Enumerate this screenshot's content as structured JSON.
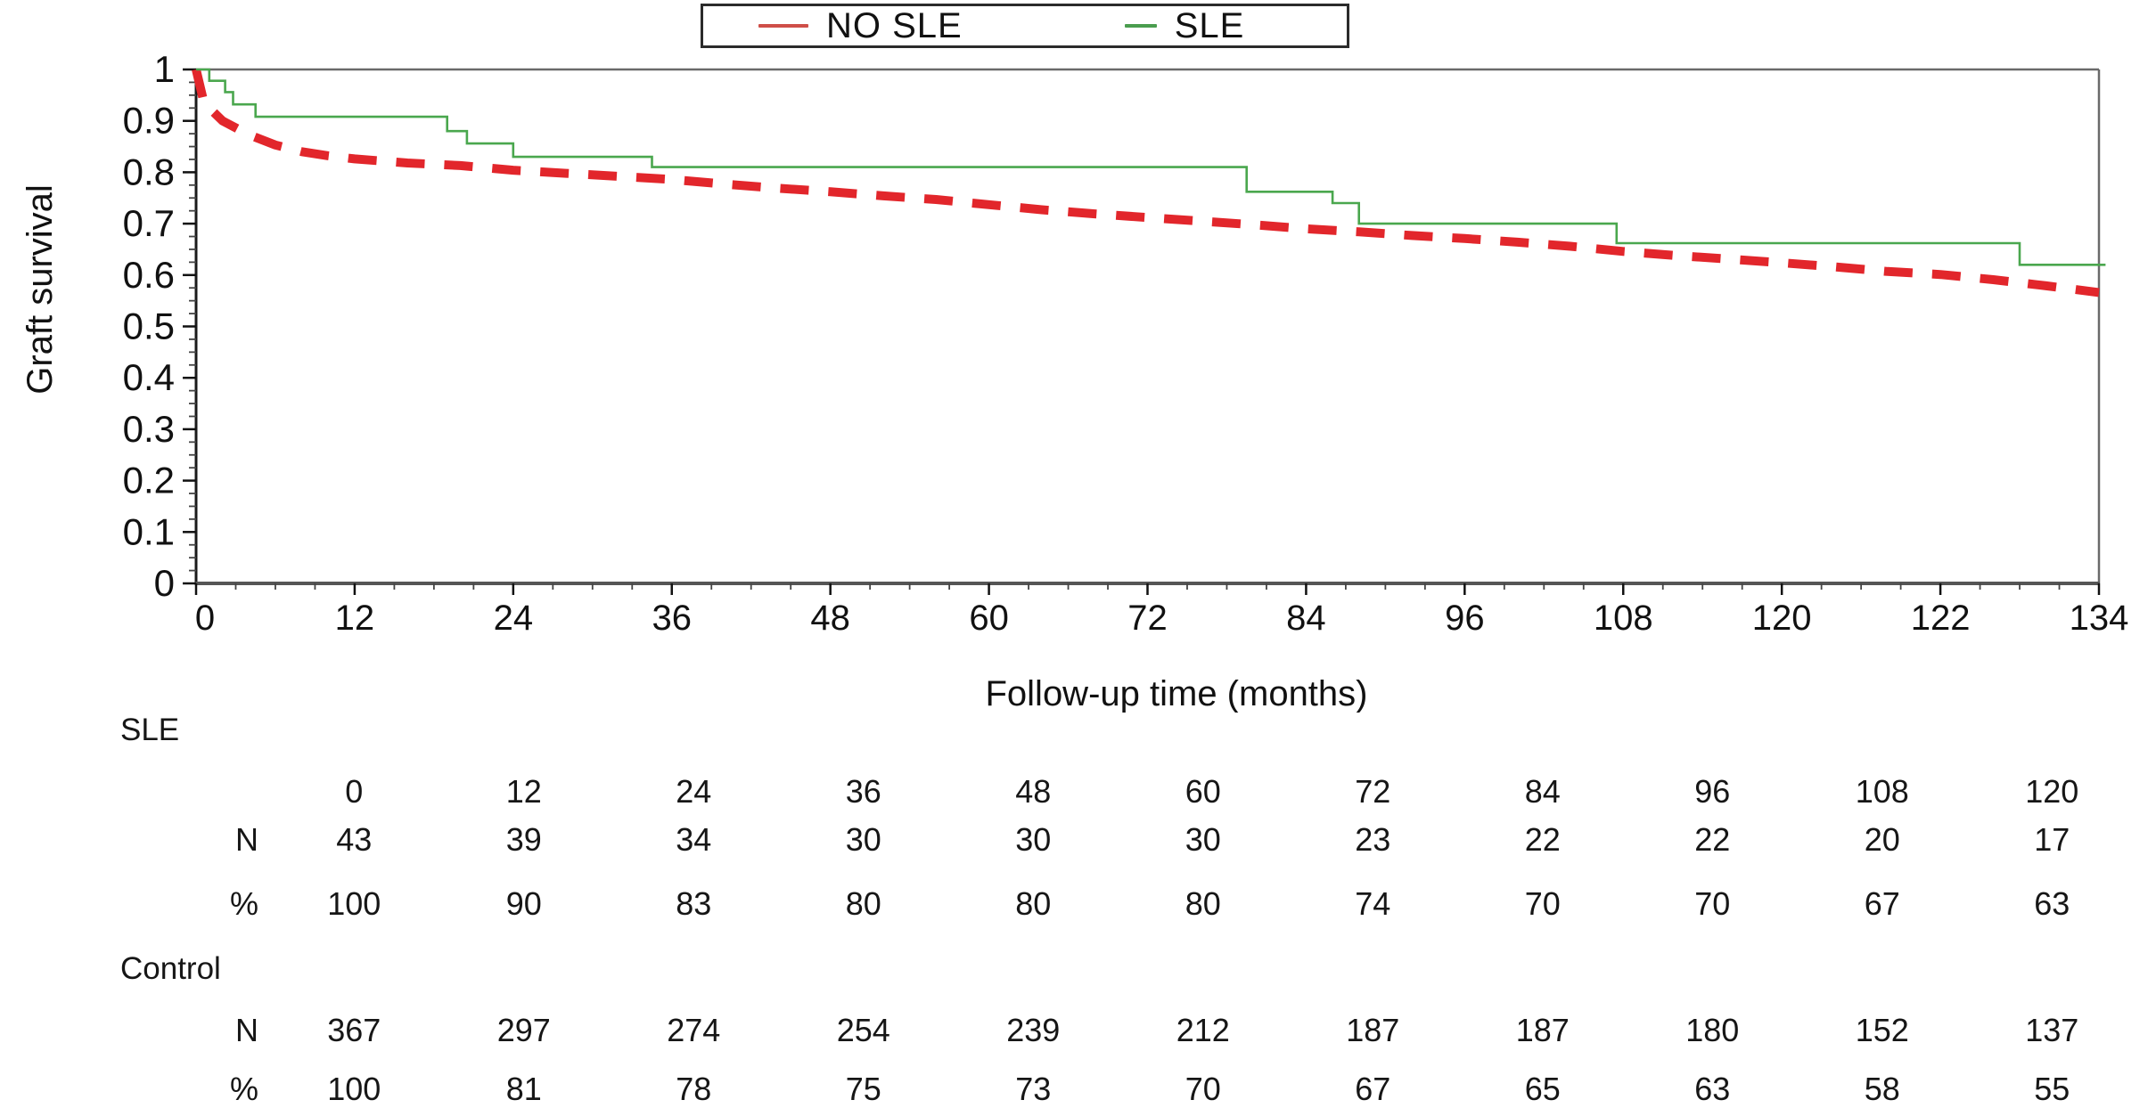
{
  "legend": {
    "entries": [
      {
        "label": "NO SLE",
        "color": "#cf4f48",
        "style": "solid-thin"
      },
      {
        "label": "SLE",
        "color": "#4a9d4f",
        "style": "solid-thin"
      }
    ]
  },
  "chart_data": {
    "type": "line",
    "title": "",
    "xlabel": "Follow-up time (months)",
    "ylabel": "Graft survival",
    "ylim": [
      0,
      1
    ],
    "grid": false,
    "legend_position": "top-center",
    "ytick_labels": [
      "1",
      "0.9",
      "0.8",
      "0.7",
      "0.6",
      "0.5",
      "0.4",
      "0.3",
      "0.2",
      "0.1",
      "0"
    ],
    "ytick_values": [
      1,
      0.9,
      0.8,
      0.7,
      0.6,
      0.5,
      0.4,
      0.3,
      0.2,
      0.1,
      0
    ],
    "xtick_labels": [
      "0",
      "12",
      "24",
      "36",
      "48",
      "60",
      "72",
      "84",
      "96",
      "108",
      "120",
      "122",
      "134"
    ],
    "x_axis_months_per_tick": 12,
    "series": [
      {
        "name": "NO SLE",
        "line_style": "dashed-thick",
        "color": "#e2262b",
        "points": [
          [
            0,
            1.0
          ],
          [
            0.6,
            0.935
          ],
          [
            2,
            0.9
          ],
          [
            4,
            0.873
          ],
          [
            6,
            0.853
          ],
          [
            8,
            0.84
          ],
          [
            10,
            0.832
          ],
          [
            12,
            0.826
          ],
          [
            16,
            0.818
          ],
          [
            20,
            0.813
          ],
          [
            24,
            0.804
          ],
          [
            28,
            0.798
          ],
          [
            32,
            0.792
          ],
          [
            36,
            0.786
          ],
          [
            40,
            0.777
          ],
          [
            44,
            0.769
          ],
          [
            48,
            0.762
          ],
          [
            52,
            0.754
          ],
          [
            56,
            0.747
          ],
          [
            60,
            0.737
          ],
          [
            64,
            0.727
          ],
          [
            68,
            0.719
          ],
          [
            72,
            0.712
          ],
          [
            76,
            0.705
          ],
          [
            80,
            0.698
          ],
          [
            84,
            0.69
          ],
          [
            88,
            0.684
          ],
          [
            92,
            0.677
          ],
          [
            96,
            0.671
          ],
          [
            100,
            0.664
          ],
          [
            104,
            0.656
          ],
          [
            108,
            0.646
          ],
          [
            112,
            0.638
          ],
          [
            116,
            0.631
          ],
          [
            120,
            0.624
          ],
          [
            124,
            0.616
          ],
          [
            128,
            0.607
          ],
          [
            132,
            0.601
          ],
          [
            136,
            0.591
          ],
          [
            140,
            0.579
          ],
          [
            144,
            0.566
          ]
        ]
      },
      {
        "name": "SLE",
        "line_style": "step-solid",
        "color": "#4aa74e",
        "points": [
          [
            0,
            1.0
          ],
          [
            1,
            0.978
          ],
          [
            2.2,
            0.956
          ],
          [
            2.8,
            0.932
          ],
          [
            4.5,
            0.908
          ],
          [
            19,
            0.88
          ],
          [
            20.5,
            0.856
          ],
          [
            24,
            0.83
          ],
          [
            34.5,
            0.81
          ],
          [
            79.5,
            0.762
          ],
          [
            86,
            0.74
          ],
          [
            88,
            0.7
          ],
          [
            107.5,
            0.662
          ],
          [
            138,
            0.62
          ],
          [
            144.5,
            0.62
          ]
        ]
      }
    ]
  },
  "risk_table": {
    "times": [
      "0",
      "12",
      "24",
      "36",
      "48",
      "60",
      "72",
      "84",
      "96",
      "108",
      "120"
    ],
    "n_label": "N",
    "pct_label": "%",
    "groups": [
      {
        "label": "SLE",
        "n": [
          "43",
          "39",
          "34",
          "30",
          "30",
          "30",
          "23",
          "22",
          "22",
          "20",
          "17"
        ],
        "pct": [
          "100",
          "90",
          "83",
          "80",
          "80",
          "80",
          "74",
          "70",
          "70",
          "67",
          "63"
        ]
      },
      {
        "label": "Control",
        "n": [
          "367",
          "297",
          "274",
          "254",
          "239",
          "212",
          "187",
          "187",
          "180",
          "152",
          "137"
        ],
        "pct": [
          "100",
          "81",
          "78",
          "75",
          "73",
          "70",
          "67",
          "65",
          "63",
          "58",
          "55"
        ]
      }
    ]
  }
}
